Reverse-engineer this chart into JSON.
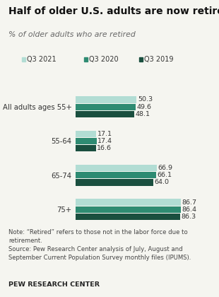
{
  "title": "Half of older U.S. adults are now retired",
  "subtitle": "% of older adults who are retired",
  "categories": [
    "All adults ages 55+",
    "55-64",
    "65-74",
    "75+"
  ],
  "series": [
    {
      "label": "Q3 2021",
      "color": "#b2ddd4",
      "values": [
        50.3,
        17.1,
        66.9,
        86.7
      ]
    },
    {
      "label": "Q3 2020",
      "color": "#2e8b72",
      "values": [
        49.6,
        17.4,
        66.1,
        86.4
      ]
    },
    {
      "label": "Q3 2019",
      "color": "#1a4f3f",
      "values": [
        48.1,
        16.6,
        64.0,
        86.3
      ]
    }
  ],
  "xlim": [
    0,
    100
  ],
  "note_line1": "Note: “Retired” refers to those not in the labor force due to",
  "note_line2": "retirement.",
  "note_line3": "Source: Pew Research Center analysis of July, August and",
  "note_line4": "September Current Population Survey monthly files (IPUMS).",
  "source_label": "PEW RESEARCH CENTER",
  "bg_color": "#f5f5f0"
}
